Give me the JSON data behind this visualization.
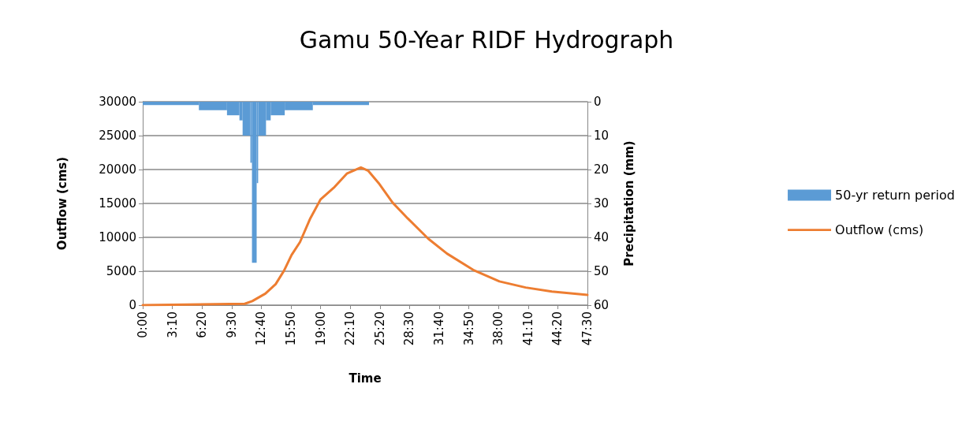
{
  "chart_data": {
    "type": "line",
    "title": "Gamu 50-Year RIDF Hydrograph",
    "xlabel": "Time",
    "ylabel": "Outflow (cms)",
    "y2label": "Precipitation (mm)",
    "xlim": [
      0,
      47.5
    ],
    "xticks": [
      {
        "value": 0,
        "label": "0:00"
      },
      {
        "value": 3.1667,
        "label": "3:10"
      },
      {
        "value": 6.3333,
        "label": "6:20"
      },
      {
        "value": 9.5,
        "label": "9:30"
      },
      {
        "value": 12.6667,
        "label": "12:40"
      },
      {
        "value": 15.8333,
        "label": "15:50"
      },
      {
        "value": 19,
        "label": "19:00"
      },
      {
        "value": 22.1667,
        "label": "22:10"
      },
      {
        "value": 25.3333,
        "label": "25:20"
      },
      {
        "value": 28.5,
        "label": "28:30"
      },
      {
        "value": 31.6667,
        "label": "31:40"
      },
      {
        "value": 34.8333,
        "label": "34:50"
      },
      {
        "value": 38,
        "label": "38:00"
      },
      {
        "value": 41.1667,
        "label": "41:10"
      },
      {
        "value": 44.3333,
        "label": "44:20"
      },
      {
        "value": 47.5,
        "label": "47:30"
      }
    ],
    "ylim": [
      0,
      30000
    ],
    "yticks": [
      0,
      5000,
      10000,
      15000,
      20000,
      25000,
      30000
    ],
    "y2lim": [
      60,
      0
    ],
    "y2ticks": [
      0,
      10,
      20,
      30,
      40,
      50,
      60
    ],
    "grid": "y",
    "legend": "right",
    "marker": "none",
    "line_style": "solid",
    "series": [
      {
        "name": "50-yr return period",
        "type": "histogram",
        "axis": "y2",
        "color": "#5b9bd5",
        "bins": [
          0,
          6,
          9,
          10.33,
          10.67,
          11.5,
          11.67,
          12.17,
          12.33,
          13.17,
          13.67,
          15.17,
          18.17,
          24.17
        ],
        "values": [
          1,
          2.5,
          4,
          5.5,
          10,
          18,
          47.5,
          24,
          10,
          5.5,
          4,
          2.5,
          1
        ]
      },
      {
        "name": "Outflow (cms)",
        "color": "#ed7d31",
        "x": [
          0,
          10.9,
          11.7,
          13.1,
          14.2,
          15.1,
          15.9,
          16.8,
          17.9,
          19.0,
          20.4,
          21.8,
          23.3,
          24.1,
          25.2,
          26.7,
          28.3,
          30.5,
          32.5,
          35.3,
          38.1,
          40.9,
          43.7,
          47.5
        ],
        "values": [
          0,
          200,
          600,
          1700,
          3100,
          5100,
          7400,
          9300,
          12800,
          15600,
          17300,
          19400,
          20300,
          19800,
          18000,
          15100,
          12800,
          9800,
          7600,
          5200,
          3500,
          2600,
          2000,
          1500
        ]
      }
    ]
  }
}
